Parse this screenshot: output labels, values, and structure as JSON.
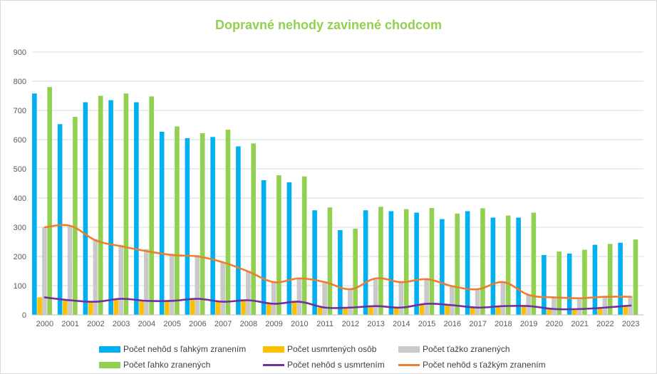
{
  "chart_data": {
    "type": "bar",
    "title": "Dopravné nehody zavinené chodcom",
    "xlabel": "",
    "ylabel": "",
    "ylim": [
      0,
      900
    ],
    "yticks": [
      0,
      100,
      200,
      300,
      400,
      500,
      600,
      700,
      800,
      900
    ],
    "grid": true,
    "legend_position": "bottom",
    "categories": [
      "2000",
      "2001",
      "2002",
      "2003",
      "2004",
      "2005",
      "2006",
      "2007",
      "2008",
      "2009",
      "2010",
      "2011",
      "2012",
      "2013",
      "2014",
      "2015",
      "2016",
      "2017",
      "2018",
      "2019",
      "2020",
      "2021",
      "2022",
      "2023"
    ],
    "series": [
      {
        "name": "Počet nehôd s ľahkým zranením",
        "kind": "bar",
        "color": "#00b0f0",
        "values": [
          758,
          653,
          728,
          735,
          728,
          627,
          605,
          609,
          577,
          461,
          454,
          358,
          290,
          358,
          355,
          350,
          328,
          355,
          333,
          333,
          205,
          210,
          240,
          247
        ]
      },
      {
        "name": "Počet usmrtených osôb",
        "kind": "bar",
        "color": "#ffc000",
        "values": [
          60,
          50,
          45,
          55,
          50,
          50,
          55,
          45,
          50,
          40,
          45,
          25,
          25,
          30,
          25,
          38,
          33,
          25,
          30,
          30,
          20,
          20,
          25,
          30
        ]
      },
      {
        "name": "Počet ťažko zranených",
        "kind": "bar",
        "color": "#c9c9c9",
        "values": [
          300,
          305,
          260,
          240,
          225,
          210,
          205,
          180,
          150,
          115,
          125,
          115,
          90,
          125,
          115,
          125,
          100,
          90,
          115,
          70,
          60,
          60,
          62,
          65
        ]
      },
      {
        "name": "Počet ľahko zranených",
        "kind": "bar",
        "color": "#92d050",
        "values": [
          780,
          678,
          750,
          758,
          748,
          645,
          622,
          634,
          587,
          478,
          474,
          368,
          295,
          370,
          362,
          366,
          347,
          365,
          340,
          350,
          217,
          223,
          243,
          258
        ]
      },
      {
        "name": "Počet nehôd  s usmrtením",
        "kind": "line",
        "color": "#7030a0",
        "values": [
          60,
          50,
          45,
          55,
          48,
          48,
          55,
          45,
          50,
          38,
          45,
          25,
          25,
          30,
          25,
          38,
          33,
          25,
          30,
          30,
          20,
          20,
          25,
          32
        ]
      },
      {
        "name": "Počet nehôd s ťažkým zranením",
        "kind": "line",
        "color": "#ed7d31",
        "values": [
          300,
          305,
          255,
          235,
          218,
          205,
          200,
          180,
          148,
          112,
          125,
          112,
          88,
          125,
          112,
          122,
          98,
          88,
          112,
          68,
          60,
          57,
          62,
          62
        ]
      }
    ]
  }
}
